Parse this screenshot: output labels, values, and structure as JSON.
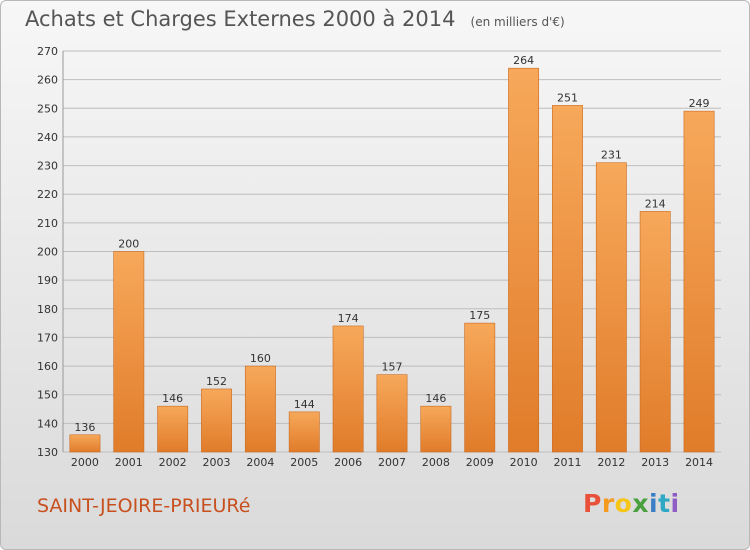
{
  "header": {
    "title": "Achats et Charges Externes 2000 à 2014",
    "subtitle": "(en milliers d'€)"
  },
  "footer": {
    "commune": "SAINT-JEOIRE-PRIEURé",
    "logo_letters": [
      "P",
      "r",
      "o",
      "x",
      "i",
      "t",
      "i"
    ],
    "logo_colors": [
      "#e8503a",
      "#f39a1f",
      "#f5c518",
      "#4aa03f",
      "#3b7fc4",
      "#2fa8c4",
      "#8e5cc4"
    ]
  },
  "colors": {
    "bar_top": "#f7a85a",
    "bar_bottom": "#e07c2a",
    "bar_edge": "#c96a1f",
    "grid": "#bdbdbd",
    "commune_text": "#c8501e"
  },
  "chart_data": {
    "type": "bar",
    "title": "Achats et Charges Externes 2000 à 2014",
    "categories": [
      "2000",
      "2001",
      "2002",
      "2003",
      "2004",
      "2005",
      "2006",
      "2007",
      "2008",
      "2009",
      "2010",
      "2011",
      "2012",
      "2013",
      "2014"
    ],
    "values": [
      136,
      200,
      146,
      152,
      160,
      144,
      174,
      157,
      146,
      175,
      264,
      251,
      231,
      214,
      249
    ],
    "ylim": [
      130,
      270
    ],
    "yticks": [
      130,
      140,
      150,
      160,
      170,
      180,
      190,
      200,
      210,
      220,
      230,
      240,
      250,
      260,
      270
    ],
    "grid": true
  }
}
